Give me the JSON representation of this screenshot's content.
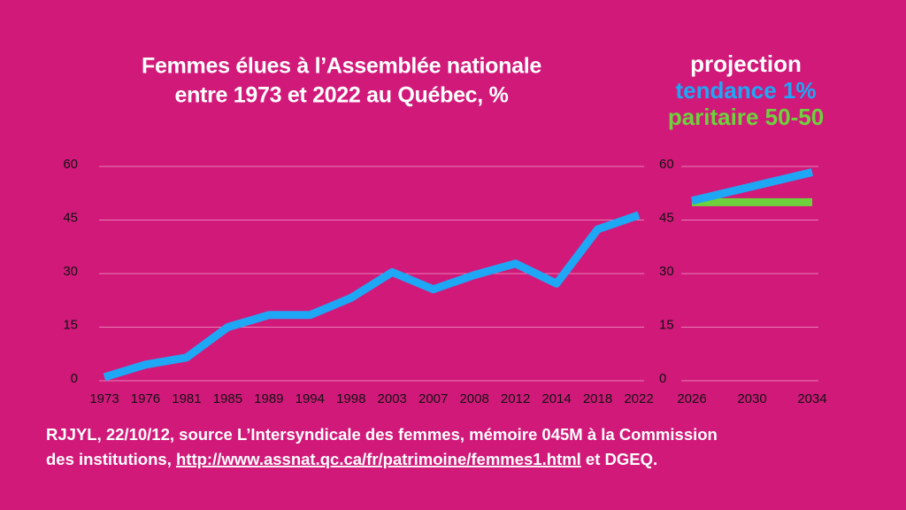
{
  "chart_data": [
    {
      "type": "line",
      "title": [
        "Femmes élues à l’Assemblée nationale",
        "entre 1973 et 2022 au Québec, %"
      ],
      "categories": [
        "1973",
        "1976",
        "1981",
        "1985",
        "1989",
        "1994",
        "1998",
        "2003",
        "2007",
        "2008",
        "2012",
        "2014",
        "2018",
        "2022"
      ],
      "values": [
        1,
        4.5,
        6.5,
        15,
        18.4,
        18.4,
        23.2,
        30.4,
        25.6,
        29.6,
        32.8,
        27.2,
        42.4,
        46.4
      ],
      "color": "#1ea7f5",
      "ylim": [
        0,
        60
      ],
      "yticks": [
        0,
        15,
        30,
        45,
        60
      ],
      "grid": true
    },
    {
      "type": "line",
      "title": "projection",
      "x": [
        2026,
        2034
      ],
      "series": [
        {
          "name": "tendance 1%",
          "color": "#1ea7f5",
          "values": [
            50.4,
            58.4
          ]
        },
        {
          "name": "paritaire 50-50",
          "color": "#6dd23c",
          "values": [
            50,
            50
          ]
        }
      ],
      "xlim": [
        2026,
        2034
      ],
      "xticks": [
        2026,
        2030,
        2034
      ],
      "ylim": [
        0,
        60
      ],
      "yticks": [
        0,
        15,
        30,
        45,
        60
      ],
      "grid": true
    }
  ],
  "footer": {
    "line1": "RJJYL, 22/10/12, source L’Intersyndicale des femmes, mémoire 045M à la Commission",
    "line2_start": "des institutions, ",
    "link": "http://www.assnat.qc.ca/fr/patrimoine/femmes1.html",
    "line2_end": " et DGEQ."
  }
}
